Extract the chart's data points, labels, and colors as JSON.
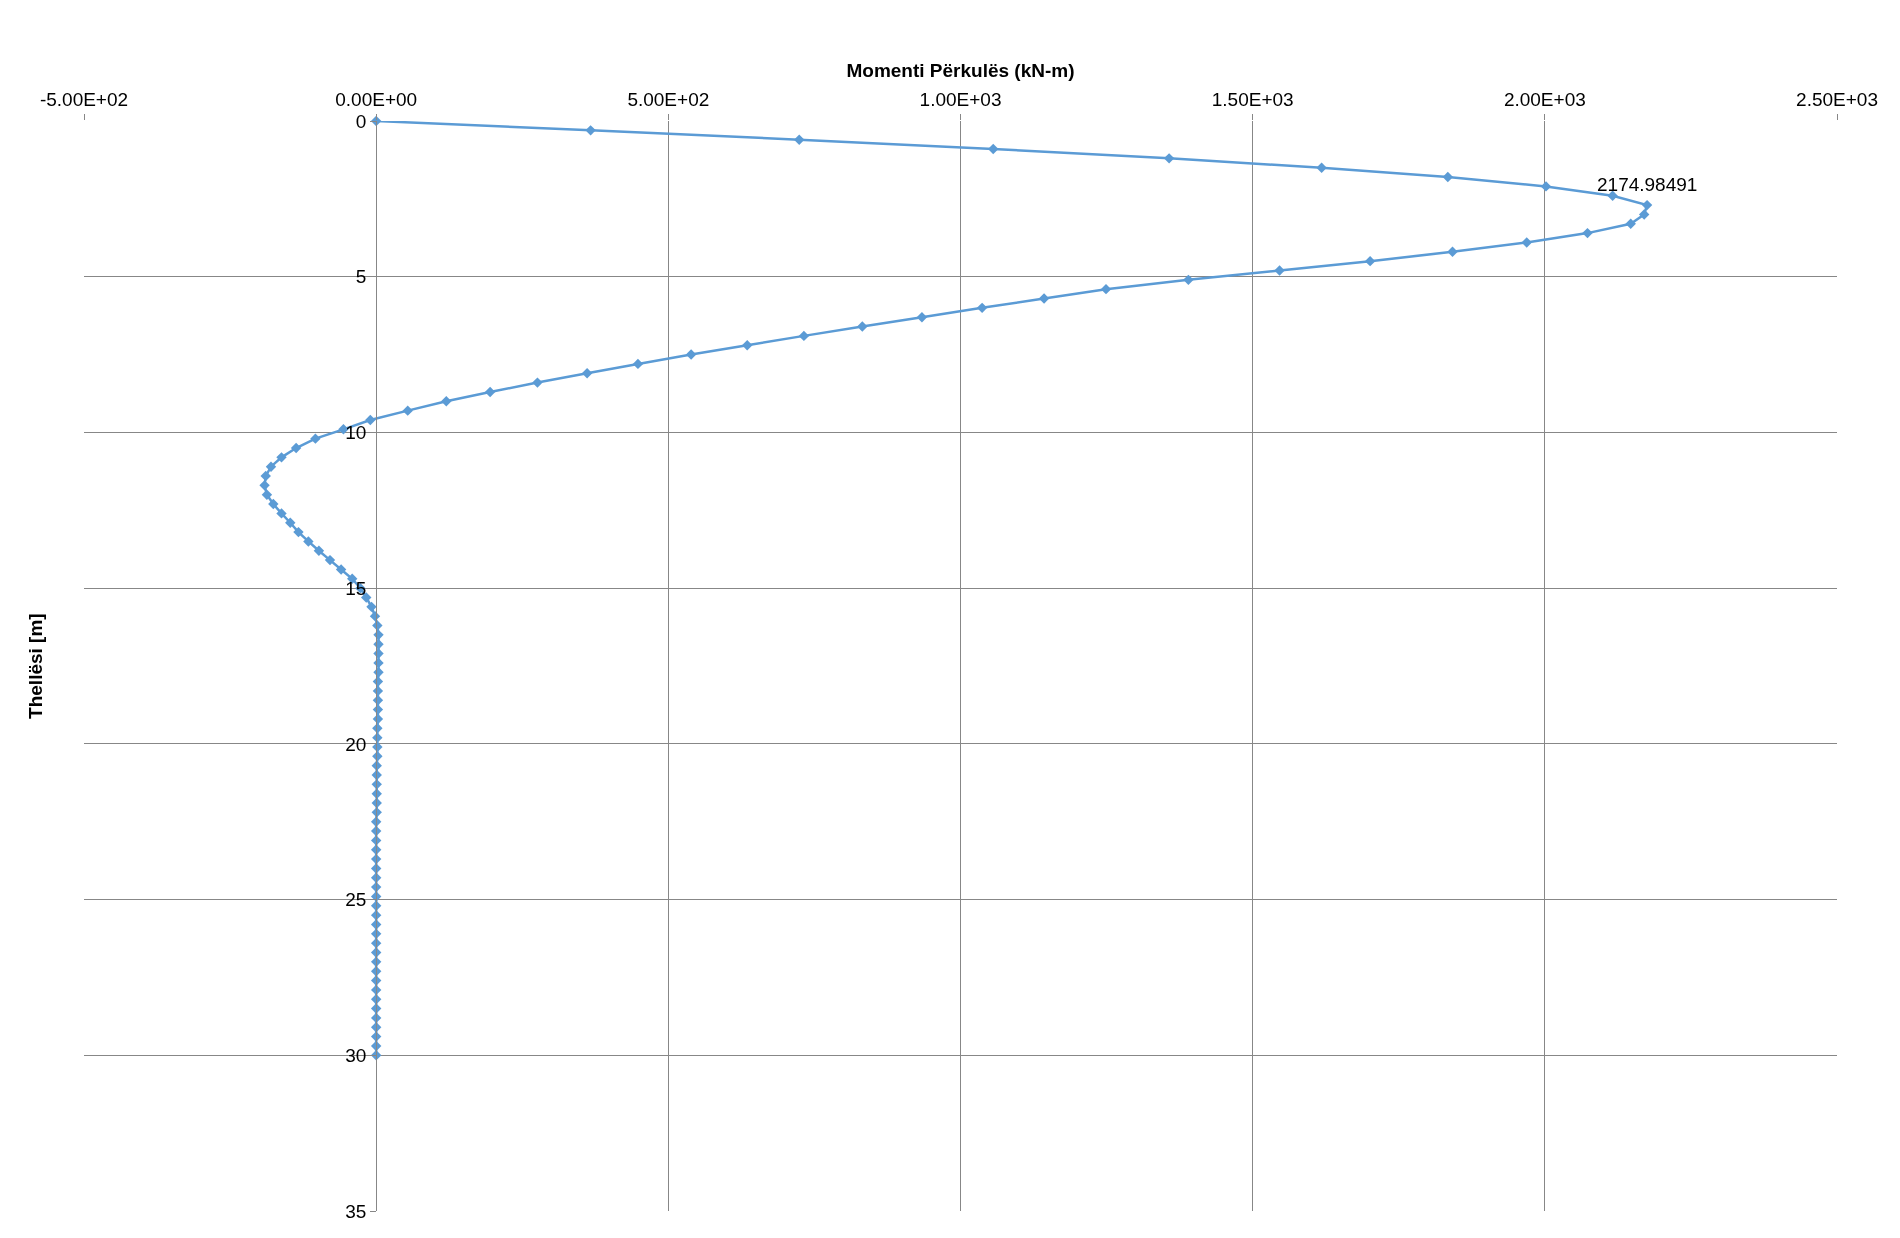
{
  "chart_data": {
    "type": "line",
    "xlabel": "Momenti Përkulës (kN-m)",
    "ylabel": "Thellësi [m]",
    "xlim": [
      -500,
      2500
    ],
    "xticks": [
      {
        "value": -500,
        "label": "-5.00E+02"
      },
      {
        "value": 0,
        "label": "0.00E+00"
      },
      {
        "value": 500,
        "label": "5.00E+02"
      },
      {
        "value": 1000,
        "label": "1.00E+03"
      },
      {
        "value": 1500,
        "label": "1.50E+03"
      },
      {
        "value": 2000,
        "label": "2.00E+03"
      },
      {
        "value": 2500,
        "label": "2.50E+03"
      }
    ],
    "ylim": [
      35,
      0
    ],
    "yticks": [
      0,
      5,
      10,
      15,
      20,
      25,
      30,
      35
    ],
    "grid": true,
    "marker": "diamond",
    "line_style": "solid",
    "legend": false,
    "annotations": [
      {
        "text": "2174.98491",
        "x": 2174.98491,
        "y": 2.7
      }
    ],
    "series": [
      {
        "color": "#5b9bd5",
        "x": [
          0,
          367,
          724,
          1056,
          1357,
          1618,
          1834,
          2002,
          2116,
          2174.98491,
          2170,
          2147,
          2073,
          1969,
          1842,
          1701,
          1546,
          1390,
          1249,
          1143,
          1037,
          934,
          832,
          732,
          635,
          539,
          448,
          361,
          276,
          195,
          120,
          54,
          -10,
          -56,
          -104,
          -137,
          -162,
          -180,
          -189,
          -191,
          -187,
          -176,
          -162,
          -147,
          -133,
          -116,
          -98,
          -79,
          -60,
          -41,
          -27,
          -17,
          -8,
          -2,
          2,
          4,
          4,
          4,
          4,
          4,
          3,
          3,
          3,
          3,
          3,
          2,
          2,
          2,
          2,
          1,
          1,
          1,
          1,
          1,
          1,
          0,
          0,
          0,
          0,
          0,
          0,
          0,
          0,
          0,
          0,
          0,
          0,
          0,
          0,
          0,
          0,
          0,
          0,
          0,
          0,
          0,
          0,
          0,
          0,
          0,
          0
        ],
        "values": [
          0,
          0.3,
          0.6,
          0.9,
          1.2,
          1.5,
          1.8,
          2.1,
          2.4,
          2.7,
          3.0,
          3.3,
          3.6,
          3.9,
          4.2,
          4.5,
          4.8,
          5.1,
          5.4,
          5.7,
          6.0,
          6.3,
          6.6,
          6.9,
          7.2,
          7.5,
          7.8,
          8.1,
          8.4,
          8.7,
          9.0,
          9.3,
          9.6,
          9.9,
          10.2,
          10.5,
          10.8,
          11.1,
          11.4,
          11.7,
          12.0,
          12.3,
          12.6,
          12.9,
          13.2,
          13.5,
          13.8,
          14.1,
          14.4,
          14.7,
          15.0,
          15.3,
          15.6,
          15.9,
          16.2,
          16.5,
          16.8,
          17.1,
          17.4,
          17.7,
          18.0,
          18.3,
          18.6,
          18.9,
          19.2,
          19.5,
          19.8,
          20.1,
          20.4,
          20.7,
          21.0,
          21.3,
          21.6,
          21.9,
          22.2,
          22.5,
          22.8,
          23.1,
          23.4,
          23.7,
          24.0,
          24.3,
          24.6,
          24.9,
          25.2,
          25.5,
          25.8,
          26.1,
          26.4,
          26.7,
          27.0,
          27.3,
          27.6,
          27.9,
          28.2,
          28.5,
          28.8,
          29.1,
          29.4,
          29.7,
          30.0
        ]
      }
    ]
  }
}
